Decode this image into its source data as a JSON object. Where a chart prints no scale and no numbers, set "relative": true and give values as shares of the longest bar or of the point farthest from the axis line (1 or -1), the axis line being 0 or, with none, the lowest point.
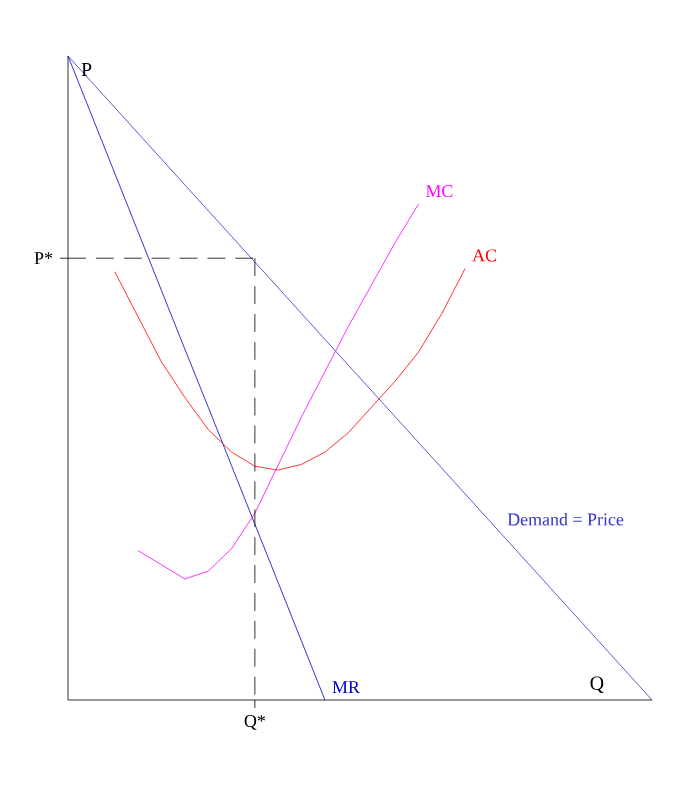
{
  "chart_data": {
    "type": "line",
    "xlabel": "Q",
    "ylabel": "P",
    "relative": true,
    "marker": "none",
    "categories": [
      null,
      null,
      null,
      null,
      null,
      null,
      null,
      null,
      null,
      null,
      null,
      null,
      null,
      null,
      null,
      null,
      null,
      null,
      null,
      null,
      null,
      null,
      null,
      null,
      null,
      null
    ],
    "annotations": [
      "Q*",
      "P*"
    ],
    "series": [
      {
        "name": "Demand = Price",
        "color": "#3333cc",
        "values": [
          1.0,
          0.96,
          0.92,
          0.88,
          0.84,
          0.8,
          0.76,
          0.72,
          0.68,
          0.64,
          0.6,
          0.56,
          0.52,
          0.48,
          0.44,
          0.4,
          0.36,
          0.32,
          0.28,
          0.24,
          0.2,
          0.16,
          0.12,
          0.08,
          0.04,
          0
        ]
      },
      {
        "name": "MR",
        "color": "#0000cc",
        "values": [
          1.0,
          0.909,
          0.818,
          0.727,
          0.636,
          0.545,
          0.455,
          0.364,
          0.273,
          0.182,
          0.091,
          0,
          null,
          null,
          null,
          null,
          null,
          null,
          null,
          null,
          null,
          null,
          null,
          null,
          null,
          null
        ]
      },
      {
        "name": "MC",
        "color": "#ff00ff",
        "values": [
          null,
          null,
          null,
          0.232,
          0.21,
          0.188,
          0.2,
          0.235,
          0.29,
          0.365,
          0.44,
          0.51,
          0.58,
          0.645,
          0.71,
          0.77,
          null,
          null,
          null,
          null,
          null,
          null,
          null,
          null,
          null,
          null
        ]
      },
      {
        "name": "AC",
        "color": "#ff0000",
        "values": [
          null,
          null,
          0.665,
          0.595,
          0.525,
          0.47,
          0.42,
          0.385,
          0.363,
          0.357,
          0.366,
          0.385,
          0.415,
          0.455,
          0.495,
          0.54,
          0.6,
          0.67,
          null,
          null,
          null,
          null,
          null,
          null,
          null,
          null
        ]
      },
      {
        "color": "#000000",
        "line_style": "dashed",
        "values": [
          0.686,
          0.686,
          0.686,
          0.686,
          0.686,
          0.686,
          0.686,
          0.686,
          0.686,
          null,
          null,
          null,
          null,
          null,
          null,
          null,
          null,
          null,
          null,
          null,
          null,
          null,
          null,
          null,
          null,
          null
        ]
      }
    ]
  }
}
